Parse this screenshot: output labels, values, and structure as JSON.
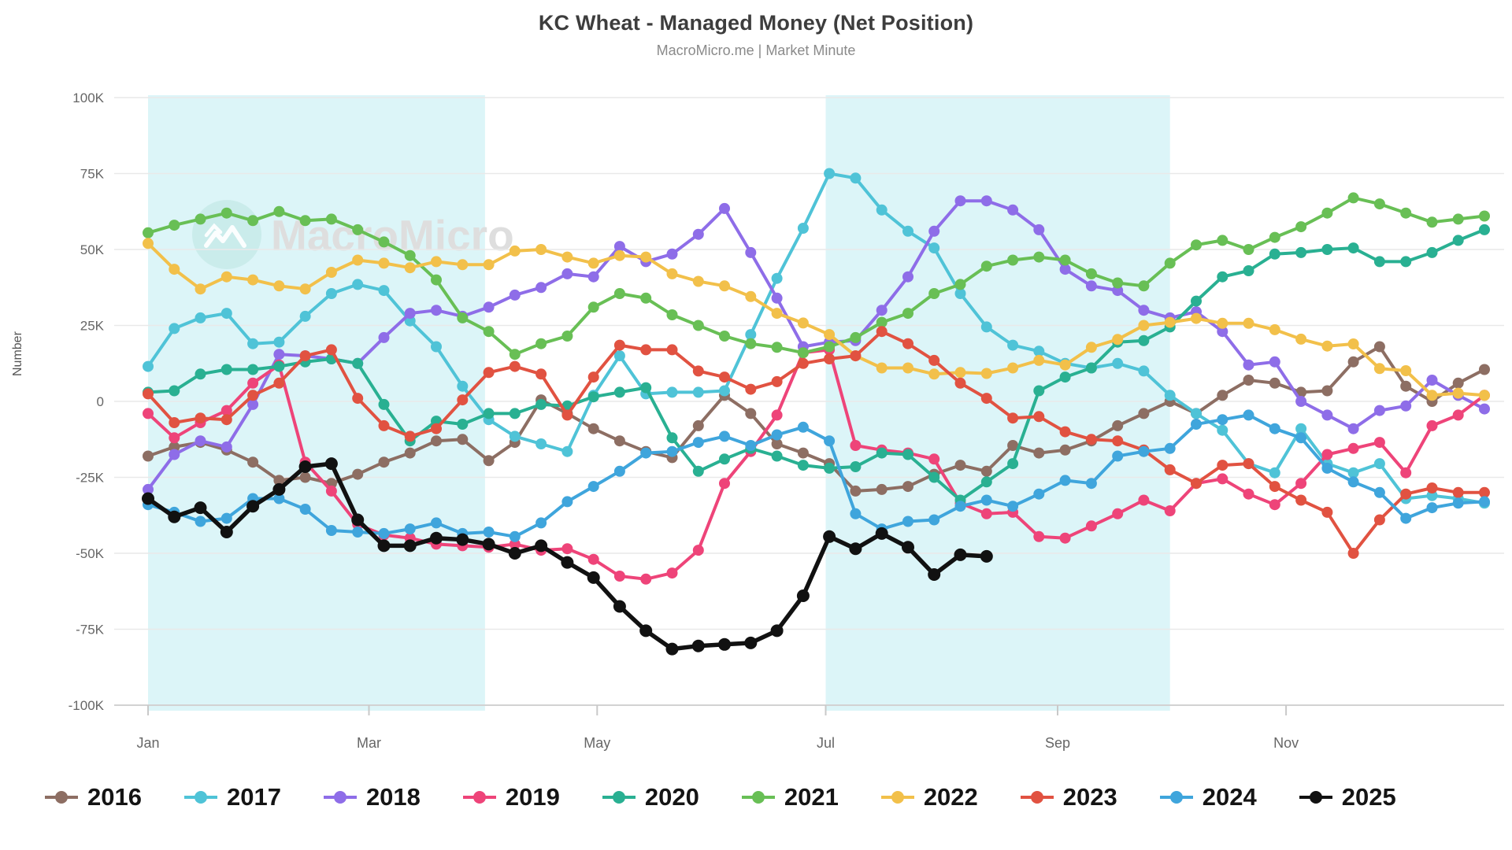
{
  "title": "KC Wheat - Managed Money (Net Position)",
  "subtitle": "MacroMicro.me | Market Minute",
  "watermark_text": "MacroMicro",
  "chart_data": {
    "type": "line",
    "title": "KC Wheat - Managed Money (Net Position)",
    "subtitle": "MacroMicro.me | Market Minute",
    "ylabel": "Number",
    "xlabel": "",
    "values_unit": "thousands (K contracts, net position)",
    "x_axis": "weekly observations, Jan through Dec",
    "weeks_per_series": 52,
    "ylim": [
      -100000,
      100000
    ],
    "grid": "horizontal",
    "legend_position": "bottom",
    "y_tick_labels": [
      "100K",
      "75K",
      "50K",
      "25K",
      "0",
      "-25K",
      "-50K",
      "-75K",
      "-100K"
    ],
    "y_tick_values": [
      100,
      75,
      50,
      25,
      0,
      -25,
      -50,
      -75,
      -100
    ],
    "x_tick_labels": [
      "Jan",
      "Mar",
      "May",
      "Jul",
      "Sep",
      "Nov"
    ],
    "x_tick_weeks": [
      0,
      8.43,
      17.14,
      25.86,
      34.71,
      43.43
    ],
    "shaded_bands_weeks": [
      [
        0,
        12.86
      ],
      [
        25.86,
        39.0
      ]
    ],
    "band_color": "#dcf5f8",
    "series": [
      {
        "name": "2016",
        "color": "#8d6e63",
        "values": [
          -18,
          -15,
          -13.5,
          -16,
          -20,
          -26,
          -25,
          -27,
          -24,
          -20,
          -17,
          -13,
          -12.5,
          -19.5,
          -13.5,
          0.5,
          -4,
          -9,
          -13,
          -16.5,
          -18.5,
          -8,
          2,
          -4,
          -14,
          -17,
          -20.5,
          -29.5,
          -29,
          -28,
          -24,
          -21,
          -23,
          -14.5,
          -17,
          -16,
          -13,
          -8,
          -4,
          0,
          -4,
          2,
          7,
          6,
          3,
          3.5,
          13,
          18,
          5,
          0,
          6,
          10.5
        ]
      },
      {
        "name": "2017",
        "color": "#4fc3d7",
        "values": [
          11.5,
          24,
          27.5,
          29,
          19,
          19.5,
          28,
          35.5,
          38.5,
          36.5,
          26.5,
          18,
          5,
          -6,
          -11.5,
          -14,
          -16.5,
          2,
          15,
          2.5,
          3,
          3,
          3.5,
          22,
          40.5,
          57,
          75,
          73.5,
          63,
          56,
          50.5,
          35.5,
          24.5,
          18.5,
          16.5,
          12.5,
          11,
          12.5,
          10,
          2,
          -4,
          -9.5,
          -20.5,
          -23.5,
          -9,
          -20.5,
          -23.5,
          -20.5,
          -32,
          -31,
          -32,
          -33.5
        ]
      },
      {
        "name": "2018",
        "color": "#8e6de8",
        "values": [
          -29,
          -17.5,
          -13,
          -15,
          -1,
          15.5,
          15,
          14,
          12.5,
          21,
          29,
          30,
          28,
          31,
          35,
          37.5,
          42,
          41,
          51,
          46,
          48.5,
          55,
          63.5,
          49,
          34,
          18,
          19.5,
          20,
          30,
          41,
          56,
          66,
          66,
          63,
          56.5,
          43.5,
          38,
          36.5,
          30,
          27.5,
          29.5,
          23,
          12,
          13,
          0,
          -4.5,
          -9,
          -3,
          -1.5,
          7,
          2,
          -2.5
        ]
      },
      {
        "name": "2019",
        "color": "#ee4479",
        "values": [
          -4,
          -12,
          -7,
          -3,
          6,
          12,
          -20,
          -29.5,
          -40.5,
          -44,
          -45,
          -47,
          -47.5,
          -48,
          -47,
          -49,
          -48.5,
          -52,
          -57.5,
          -58.5,
          -56.5,
          -49,
          -27,
          -16.5,
          -4.5,
          16,
          17,
          -14.5,
          -16,
          -17,
          -19,
          -33.5,
          -37,
          -36.5,
          -44.5,
          -45,
          -41,
          -37,
          -32.5,
          -36,
          -27,
          -25.5,
          -30.5,
          -34,
          -27,
          -17.5,
          -15.5,
          -13.5,
          -23.5,
          -8,
          -4.5,
          2
        ]
      },
      {
        "name": "2020",
        "color": "#29b092",
        "values": [
          3,
          3.5,
          9,
          10.5,
          10.5,
          11.5,
          13,
          14,
          12.5,
          -1,
          -13,
          -6.5,
          -7.5,
          -4,
          -4,
          -1,
          -1.5,
          1.5,
          3,
          4.5,
          -12,
          -23,
          -19,
          -15.5,
          -18,
          -21,
          -22,
          -21.5,
          -17,
          -17.5,
          -25,
          -32.5,
          -26.5,
          -20.5,
          3.5,
          8,
          11,
          19.5,
          20,
          24.5,
          33,
          41,
          43,
          48.5,
          49,
          50,
          50.5,
          46,
          46,
          49,
          53,
          56.5
        ]
      },
      {
        "name": "2021",
        "color": "#68bf55",
        "values": [
          55.5,
          58,
          60,
          62,
          59.5,
          62.5,
          59.5,
          60,
          56.5,
          52.5,
          48,
          40,
          27.5,
          23,
          15.5,
          19,
          21.5,
          31,
          35.5,
          34,
          28.5,
          25,
          21.5,
          19,
          17.8,
          16,
          18,
          21,
          26,
          29,
          35.5,
          38.5,
          44.5,
          46.5,
          47.5,
          46.5,
          42,
          39,
          38,
          45.5,
          51.5,
          53,
          50,
          54,
          57.5,
          62,
          67,
          65,
          62,
          59,
          60,
          61
        ]
      },
      {
        "name": "2022",
        "color": "#f2c04a",
        "values": [
          52,
          43.5,
          37,
          41,
          40,
          38,
          37,
          42.5,
          46.5,
          45.5,
          44,
          46,
          45,
          45,
          49.5,
          50,
          47.5,
          45.5,
          48,
          47.5,
          42,
          39.5,
          38,
          34.5,
          29,
          25.8,
          22,
          15,
          11,
          11,
          9,
          9.5,
          9.2,
          11,
          13.5,
          12,
          17.8,
          20.4,
          25,
          26,
          27.3,
          25.7,
          25.7,
          23.6,
          20.5,
          18.2,
          18.9,
          10.8,
          10.1,
          2,
          2.7,
          2
        ]
      },
      {
        "name": "2023",
        "color": "#e15241",
        "values": [
          2.5,
          -7,
          -5.5,
          -6,
          2,
          6,
          15,
          17,
          1,
          -8,
          -11.5,
          -9,
          0.5,
          9.5,
          11.5,
          9,
          -4.5,
          8,
          18.5,
          17,
          17,
          10,
          8,
          4,
          6.5,
          12.5,
          14,
          15,
          23,
          19,
          13.5,
          6,
          1,
          -5.5,
          -5,
          -10,
          -12.5,
          -13,
          -16,
          -22.5,
          -27,
          -21,
          -20.5,
          -28,
          -32.5,
          -36.5,
          -50,
          -39,
          -30.5,
          -28.5,
          -30,
          -30
        ]
      },
      {
        "name": "2024",
        "color": "#3fa5dc",
        "values": [
          -34,
          -36.5,
          -39.5,
          -38.5,
          -32,
          -32,
          -35.5,
          -42.5,
          -43,
          -43.5,
          -42,
          -40,
          -43.5,
          -43,
          -44.5,
          -40,
          -33,
          -28,
          -23,
          -17,
          -16.5,
          -13.5,
          -11.5,
          -14.5,
          -11,
          -8.5,
          -13,
          -37,
          -42,
          -39.5,
          -39,
          -34.5,
          -32.5,
          -34.5,
          -30.5,
          -26,
          -27,
          -18,
          -16.5,
          -15.5,
          -7.5,
          -6,
          -4.5,
          -9,
          -12,
          -22,
          -26.5,
          -30,
          -38.5,
          -35,
          -33.5,
          -33
        ]
      },
      {
        "name": "2025",
        "color": "#111111",
        "values": [
          -32,
          -38,
          -35,
          -43,
          -34.5,
          -29,
          -21.5,
          -20.5,
          -39,
          -47.5,
          -47.5,
          -45,
          -45.5,
          -47,
          -50,
          -47.5,
          -53,
          -58,
          -67.5,
          -75.5,
          -81.5,
          -80.5,
          -80,
          -79.5,
          -75.5,
          -64,
          -44.5,
          -48.5,
          -43.5,
          -48,
          -57,
          -50.5,
          -51
        ]
      }
    ]
  },
  "legend": {
    "items": [
      {
        "label": "2016",
        "color": "#8d6e63"
      },
      {
        "label": "2017",
        "color": "#4fc3d7"
      },
      {
        "label": "2018",
        "color": "#8e6de8"
      },
      {
        "label": "2019",
        "color": "#ee4479"
      },
      {
        "label": "2020",
        "color": "#29b092"
      },
      {
        "label": "2021",
        "color": "#68bf55"
      },
      {
        "label": "2022",
        "color": "#f2c04a"
      },
      {
        "label": "2023",
        "color": "#e15241"
      },
      {
        "label": "2024",
        "color": "#3fa5dc"
      },
      {
        "label": "2025",
        "color": "#111111"
      }
    ]
  }
}
